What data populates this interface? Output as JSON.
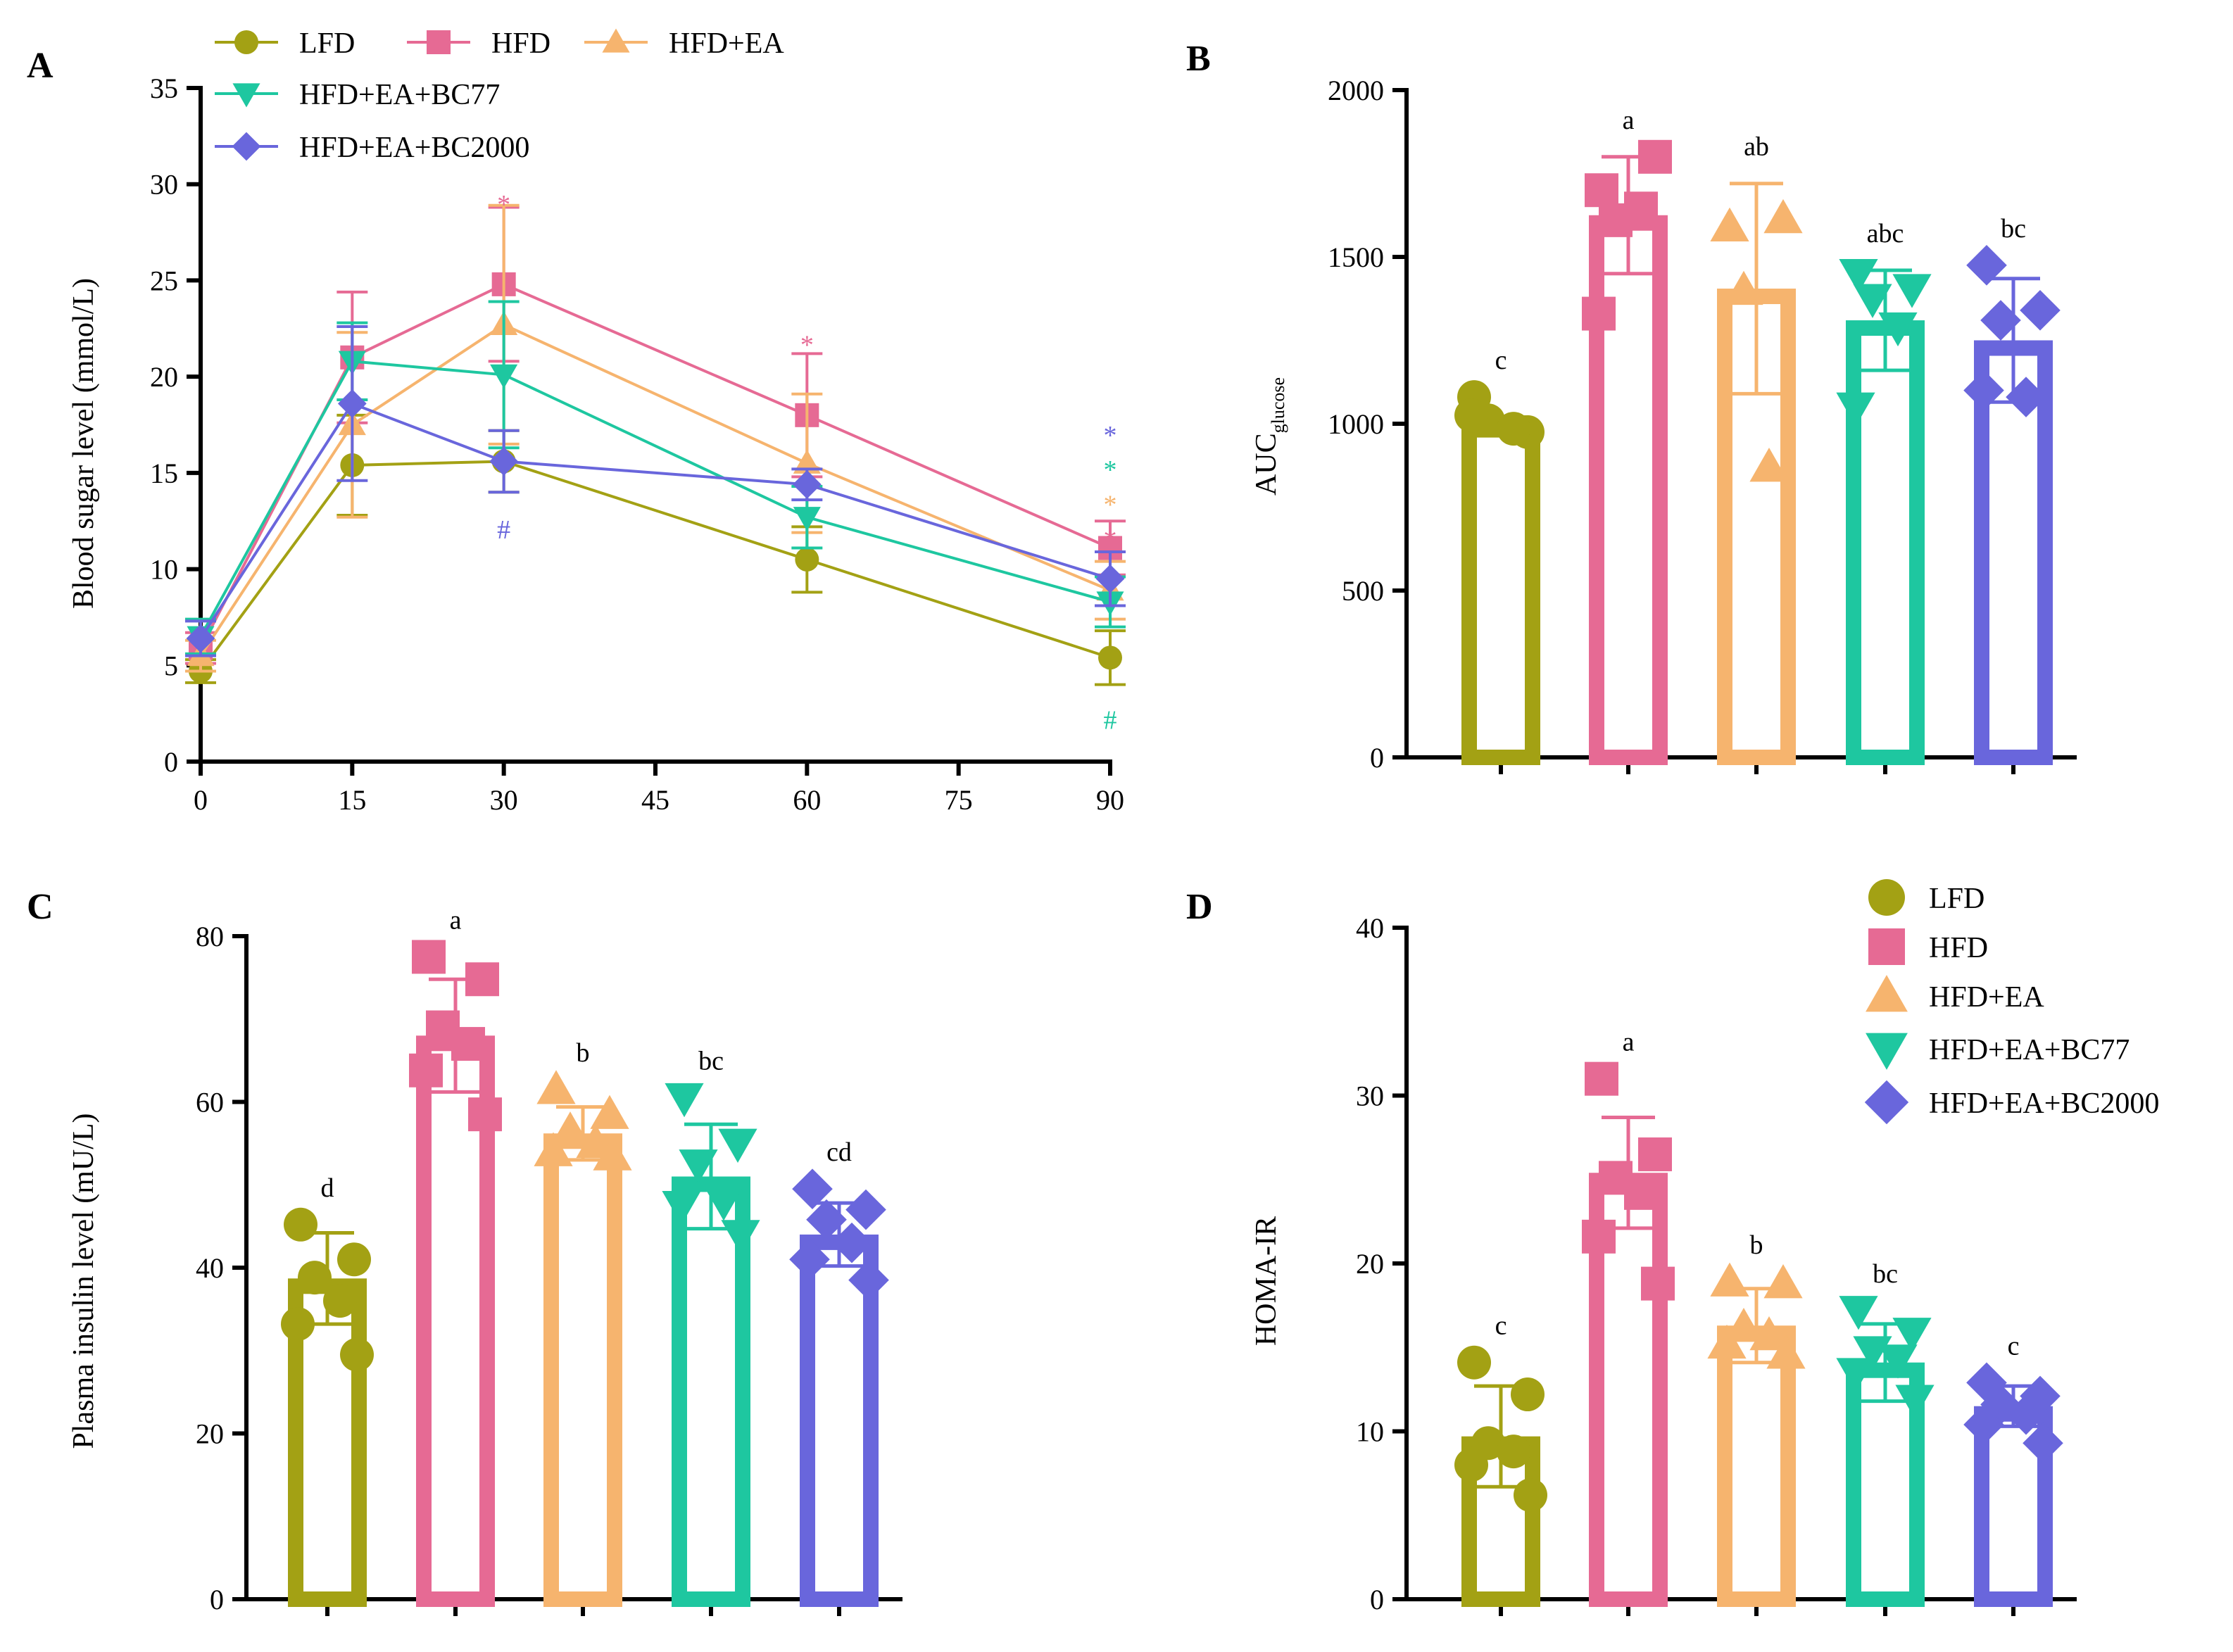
{
  "groups": [
    {
      "key": "LFD",
      "label": "LFD",
      "color": "#a3a114",
      "marker": "circle"
    },
    {
      "key": "HFD",
      "label": "HFD",
      "color": "#e66a94",
      "marker": "square"
    },
    {
      "key": "HFD_EA",
      "label": "HFD+EA",
      "color": "#f6b46e",
      "marker": "triangle-up"
    },
    {
      "key": "HFD_EA_BC77",
      "label": "HFD+EA+BC77",
      "color": "#1ec7a0",
      "marker": "triangle-down"
    },
    {
      "key": "HFD_EA_BC2000",
      "label": "HFD+EA+BC2000",
      "color": "#6966dc",
      "marker": "diamond"
    }
  ],
  "chart_data": [
    {
      "panel": "A",
      "type": "line",
      "xlabel": "",
      "ylabel": "Blood sugar level (mmol/L)",
      "x": [
        0,
        15,
        30,
        60,
        90
      ],
      "xticks": [
        0,
        15,
        30,
        45,
        60,
        75,
        90
      ],
      "xlim": [
        0,
        90
      ],
      "ylim": [
        0,
        35
      ],
      "yticks": [
        0,
        5,
        10,
        15,
        20,
        25,
        30,
        35
      ],
      "series": [
        {
          "name": "LFD",
          "values": [
            4.7,
            15.4,
            15.6,
            10.5,
            5.4
          ],
          "errors": [
            0.6,
            2.6,
            1.6,
            1.7,
            1.4
          ]
        },
        {
          "name": "HFD",
          "values": [
            5.9,
            21.0,
            24.8,
            18.0,
            11.1
          ],
          "errors": [
            0.8,
            3.4,
            4.0,
            3.2,
            1.4
          ]
        },
        {
          "name": "HFD+EA",
          "values": [
            5.5,
            17.5,
            22.7,
            15.5,
            8.9
          ],
          "errors": [
            0.8,
            4.8,
            6.2,
            3.6,
            1.5
          ]
        },
        {
          "name": "HFD+EA+BC77",
          "values": [
            6.5,
            20.8,
            20.1,
            12.7,
            8.3
          ],
          "errors": [
            0.9,
            2.0,
            3.8,
            1.6,
            1.3
          ]
        },
        {
          "name": "HFD+EA+BC2000",
          "values": [
            6.4,
            18.6,
            15.6,
            14.4,
            9.5
          ],
          "errors": [
            0.9,
            4.0,
            1.6,
            0.8,
            1.4
          ]
        }
      ],
      "annotations": [
        {
          "text": "*",
          "x": 30,
          "y": 29.3,
          "group": "HFD"
        },
        {
          "text": "#",
          "x": 30,
          "y": 12.4,
          "group": "HFD+EA+BC2000"
        },
        {
          "text": "*",
          "x": 60,
          "y": 22.0,
          "group": "HFD"
        },
        {
          "text": "*",
          "x": 90,
          "y": 17.3,
          "group": "HFD+EA+BC2000"
        },
        {
          "text": "*",
          "x": 90,
          "y": 15.5,
          "group": "HFD+EA+BC77"
        },
        {
          "text": "*",
          "x": 90,
          "y": 13.7,
          "group": "HFD+EA"
        },
        {
          "text": "*",
          "x": 90,
          "y": 11.9,
          "group": "HFD"
        },
        {
          "text": "#",
          "x": 90,
          "y": 2.5,
          "group": "HFD+EA+BC77"
        }
      ]
    },
    {
      "panel": "B",
      "type": "bar",
      "ylabel_main": "AUC",
      "ylabel_sub": "glucose",
      "categories": [
        "LFD",
        "HFD",
        "HFD+EA",
        "HFD+EA+BC77",
        "HFD+EA+BC2000"
      ],
      "values": [
        1005,
        1625,
        1405,
        1310,
        1250
      ],
      "errors": [
        15,
        175,
        315,
        150,
        185
      ],
      "points": [
        [
          1080,
          975,
          1010,
          985,
          1025
        ],
        [
          1700,
          1800,
          1610,
          1645,
          1330
        ],
        [
          1590,
          1615,
          1400,
          870
        ],
        [
          1450,
          1405,
          1375,
          1290,
          1050
        ],
        [
          1475,
          1340,
          1310,
          1080,
          1100
        ]
      ],
      "letters": [
        "c",
        "a",
        "ab",
        "abc",
        "bc"
      ],
      "ylim": [
        0,
        2000
      ],
      "yticks": [
        0,
        500,
        1000,
        1500,
        2000
      ]
    },
    {
      "panel": "C",
      "type": "bar",
      "ylabel": "Plasma insulin level (mU/L)",
      "categories": [
        "LFD",
        "HFD",
        "HFD+EA",
        "HFD+EA+BC77",
        "HFD+EA+BC2000"
      ],
      "values": [
        38.7,
        68.0,
        56.2,
        51.0,
        44.0
      ],
      "errors": [
        5.5,
        6.8,
        3.2,
        6.3,
        3.8
      ],
      "points": [
        [
          45.2,
          41.0,
          38.8,
          36.0,
          33.2,
          29.5
        ],
        [
          77.5,
          74.8,
          69.0,
          67.0,
          63.8,
          58.5
        ],
        [
          61.5,
          58.5,
          56.5,
          55.0,
          54.0,
          53.5
        ],
        [
          60.5,
          55.0,
          52.5,
          48.0,
          47.5,
          44.0
        ],
        [
          49.5,
          47.0,
          45.8,
          43.0,
          41.0,
          38.5
        ]
      ],
      "letters": [
        "d",
        "a",
        "b",
        "bc",
        "cd"
      ],
      "ylim": [
        0,
        80
      ],
      "yticks": [
        0,
        20,
        40,
        60,
        80
      ]
    },
    {
      "panel": "D",
      "type": "bar",
      "ylabel": "HOMA-IR",
      "categories": [
        "LFD",
        "HFD",
        "HFD+EA",
        "HFD+EA+BC77",
        "HFD+EA+BC2000"
      ],
      "values": [
        9.7,
        25.4,
        16.3,
        14.1,
        11.5
      ],
      "errors": [
        3.0,
        3.3,
        2.2,
        2.3,
        1.2
      ],
      "points": [
        [
          14.1,
          12.2,
          9.3,
          8.8,
          8.0,
          6.2
        ],
        [
          31.0,
          26.5,
          25.1,
          24.2,
          21.6,
          18.8
        ],
        [
          18.9,
          18.8,
          16.2,
          15.7,
          15.2,
          14.6
        ],
        [
          17.2,
          15.9,
          14.8,
          14.3,
          13.5,
          11.9
        ],
        [
          12.9,
          12.1,
          11.6,
          11.0,
          10.4,
          9.3
        ]
      ],
      "letters": [
        "c",
        "a",
        "b",
        "bc",
        "c"
      ],
      "ylim": [
        0,
        40
      ],
      "yticks": [
        0,
        10,
        20,
        30,
        40
      ]
    }
  ]
}
